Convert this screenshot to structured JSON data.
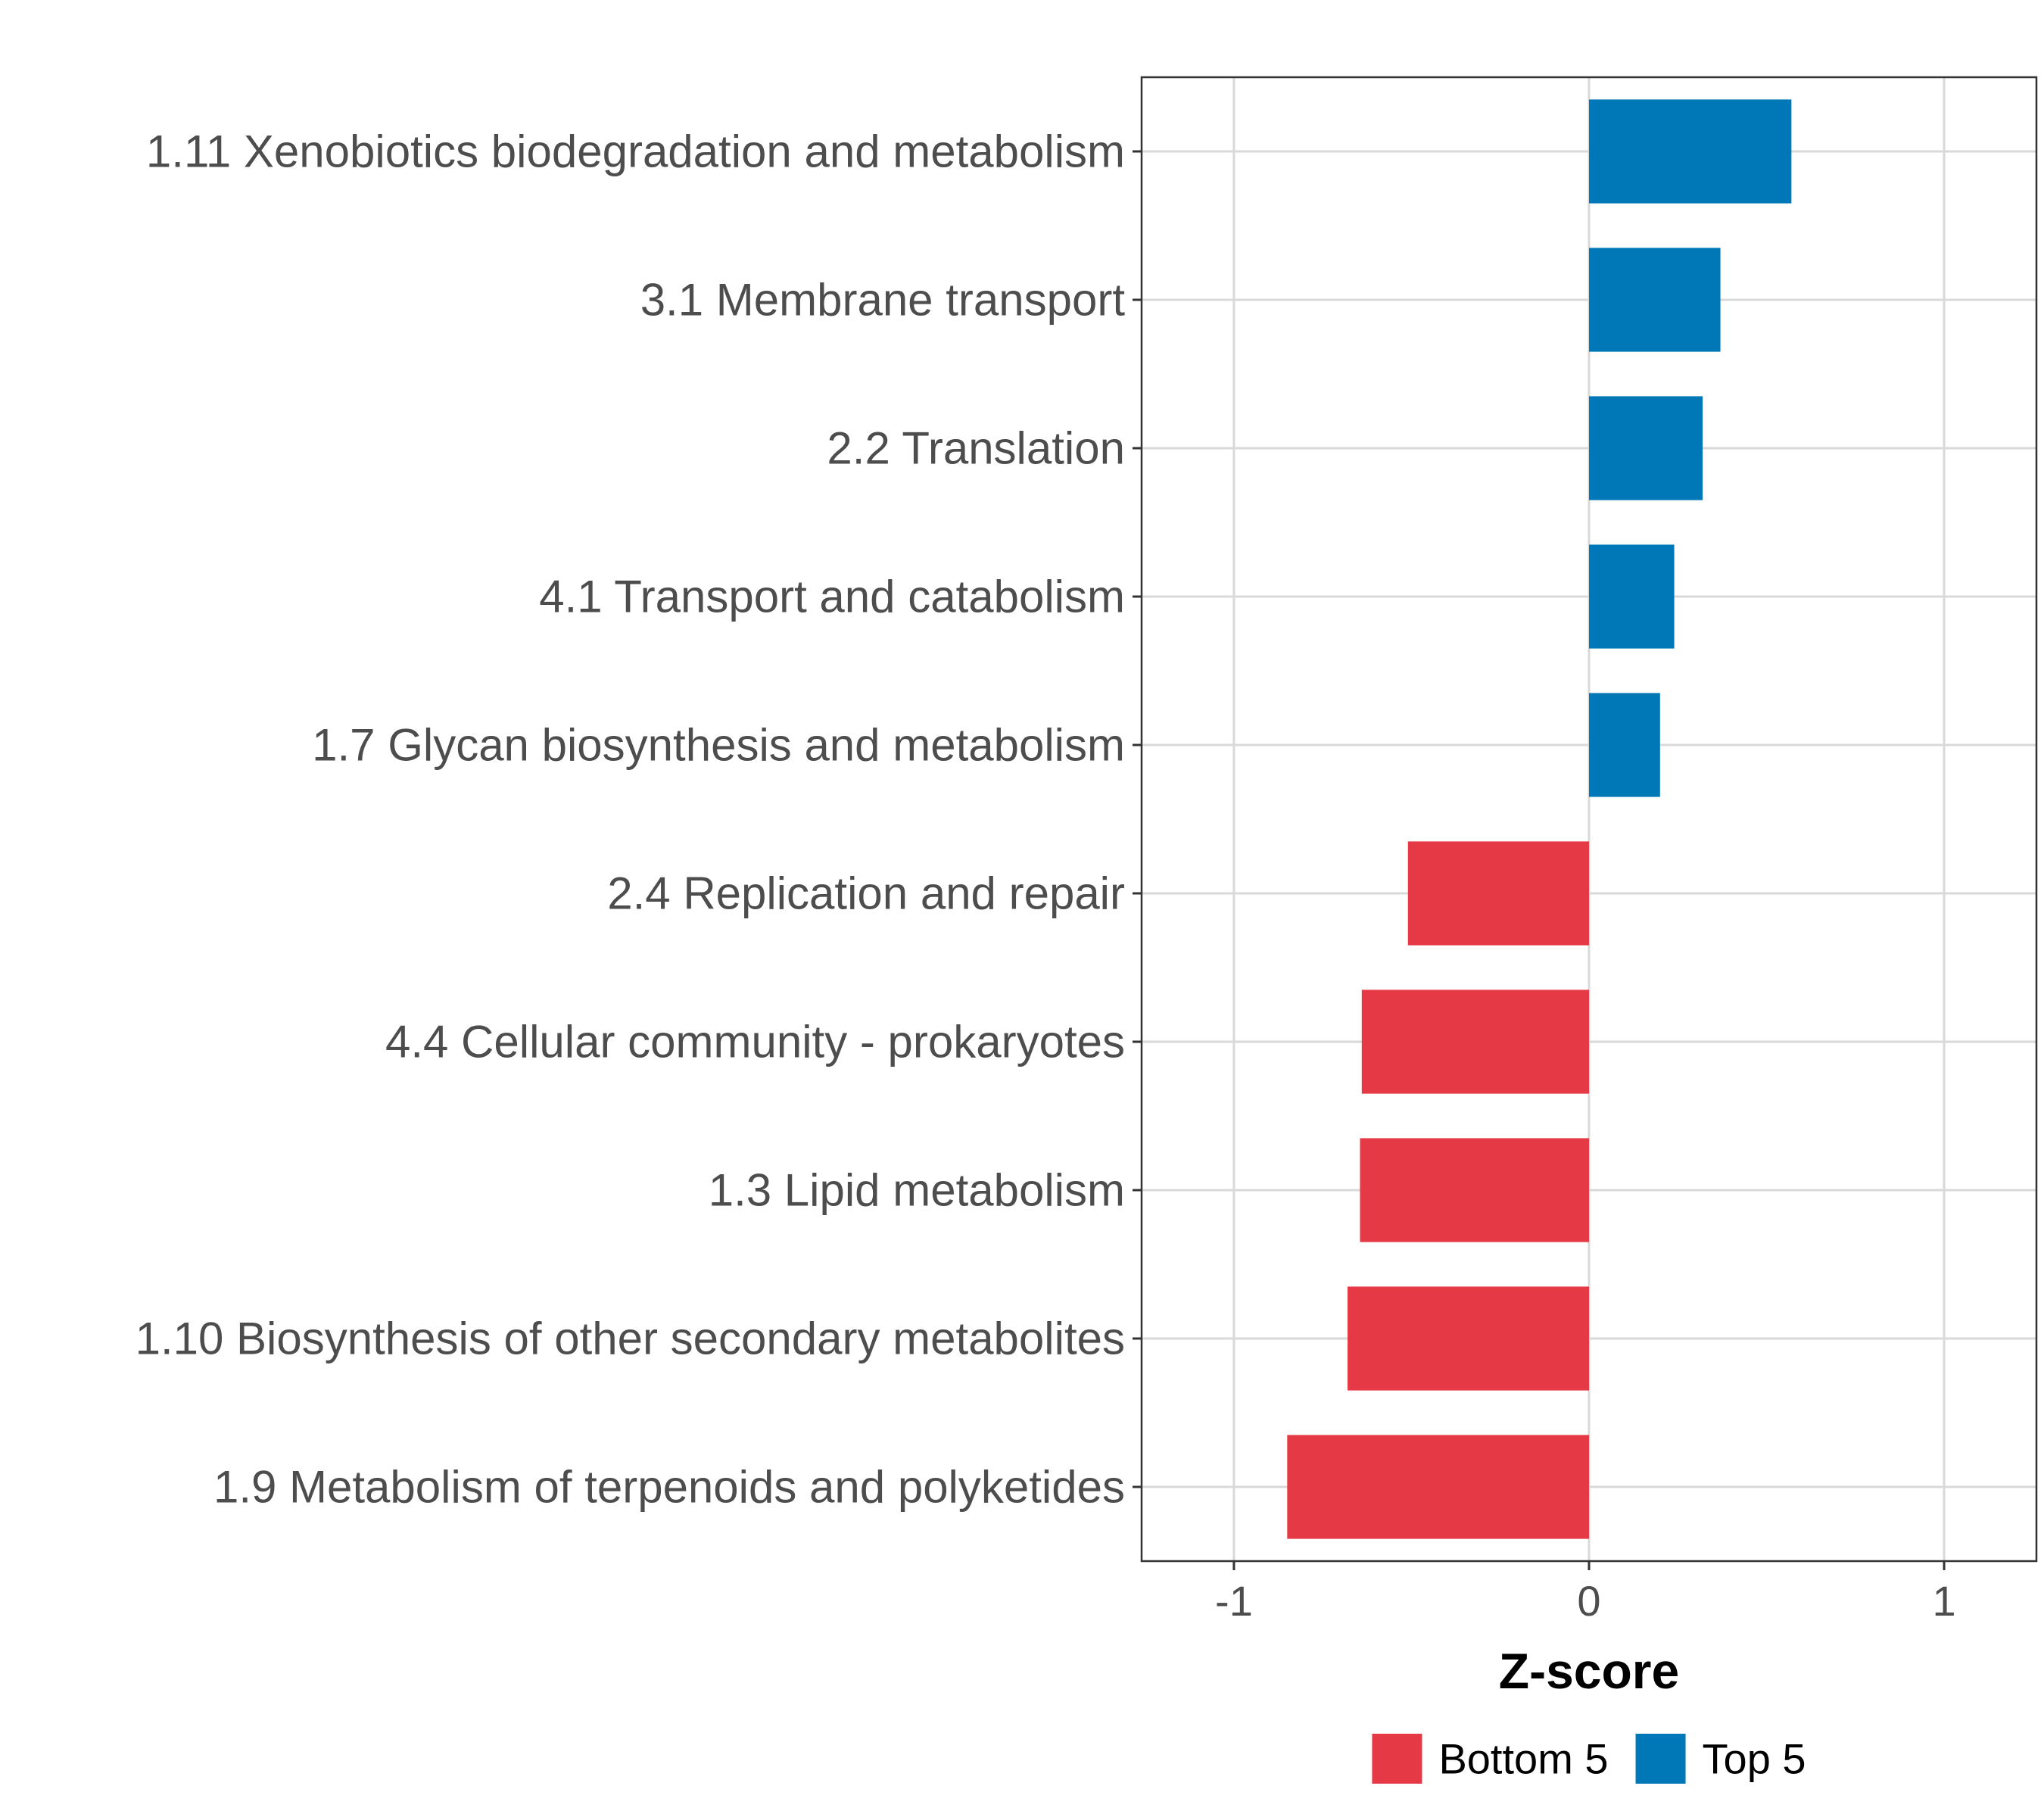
{
  "chart_data": {
    "type": "bar",
    "orientation": "horizontal",
    "categories": [
      "1.11 Xenobiotics biodegradation and metabolism",
      "3.1 Membrane transport",
      "2.2 Translation",
      "4.1 Transport and catabolism",
      "1.7 Glycan biosynthesis and metabolism",
      "2.4 Replication and repair",
      "4.4 Cellular community - prokaryotes",
      "1.3 Lipid metabolism",
      "1.10 Biosynthesis of other secondary metabolites",
      "1.9 Metabolism of terpenoids and polyketides"
    ],
    "values": [
      0.57,
      0.37,
      0.32,
      0.24,
      0.2,
      -0.51,
      -0.64,
      -0.645,
      -0.68,
      -0.85
    ],
    "groups": [
      "Top 5",
      "Top 5",
      "Top 5",
      "Top 5",
      "Top 5",
      "Bottom 5",
      "Bottom 5",
      "Bottom 5",
      "Bottom 5",
      "Bottom 5"
    ],
    "xlim": [
      -1.26,
      1.26
    ],
    "xticks": [
      -1,
      0,
      1
    ],
    "xtick_labels": [
      "-1",
      "0",
      "1"
    ],
    "xlabel": "Z-score",
    "ylabel": "",
    "grid": true,
    "legend": {
      "position": "bottom",
      "entries": [
        {
          "label": "Bottom 5",
          "color": "#e63946"
        },
        {
          "label": "Top 5",
          "color": "#0077b6"
        }
      ]
    },
    "colors": {
      "Bottom 5": "#e63946",
      "Top 5": "#0077b6"
    }
  }
}
